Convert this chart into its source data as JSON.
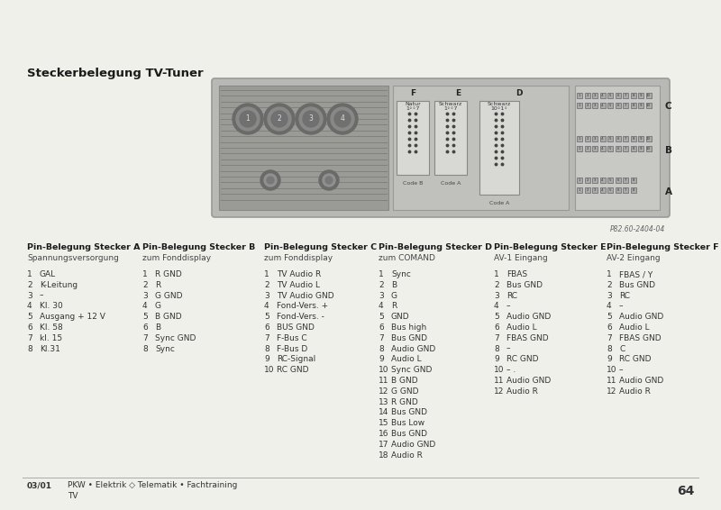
{
  "bg_color": "#f0f0eb",
  "title": "Steckerbelegung TV-Tuner",
  "page_number": "64",
  "footer_left": "03/01",
  "footer_middle": "PKW • Elektrik ◇ Telematik • Fachtraining",
  "footer_sub": "TV",
  "part_number": "P82.60-2404-04",
  "columns": [
    {
      "header": "Pin-Belegung Stecker A",
      "subheader": "Spannungsversorgung",
      "pins": [
        [
          "1",
          "GAL"
        ],
        [
          "2",
          "K-Leitung"
        ],
        [
          "3",
          "–"
        ],
        [
          "4",
          "Kl. 30"
        ],
        [
          "5",
          "Ausgang + 12 V"
        ],
        [
          "6",
          "Kl. 58"
        ],
        [
          "7",
          "kl. 15"
        ],
        [
          "8",
          "Kl.31"
        ]
      ]
    },
    {
      "header": "Pin-Belegung Stecker B",
      "subheader": "zum Fonddisplay",
      "pins": [
        [
          "1",
          "R GND"
        ],
        [
          "2",
          "R"
        ],
        [
          "3",
          "G GND"
        ],
        [
          "4",
          "G"
        ],
        [
          "5",
          "B GND"
        ],
        [
          "6",
          "B"
        ],
        [
          "7",
          "Sync GND"
        ],
        [
          "8",
          "Sync"
        ]
      ]
    },
    {
      "header": "Pin-Belegung Stecker C",
      "subheader": "zum Fonddisplay",
      "pins": [
        [
          "1",
          "TV Audio R"
        ],
        [
          "2",
          "TV Audio L"
        ],
        [
          "3",
          "TV Audio GND"
        ],
        [
          "4",
          "Fond-Vers. +"
        ],
        [
          "5",
          "Fond-Vers. -"
        ],
        [
          "6",
          "BUS GND"
        ],
        [
          "7",
          "F-Bus C"
        ],
        [
          "8",
          "F-Bus D"
        ],
        [
          "9",
          "RC-Signal"
        ],
        [
          "10",
          "RC GND"
        ]
      ]
    },
    {
      "header": "Pin-Belegung Stecker D",
      "subheader": "zum COMAND",
      "pins": [
        [
          "1",
          "Sync"
        ],
        [
          "2",
          "B"
        ],
        [
          "3",
          "G"
        ],
        [
          "4",
          "R"
        ],
        [
          "5",
          "GND"
        ],
        [
          "6",
          "Bus high"
        ],
        [
          "7",
          "Bus GND"
        ],
        [
          "8",
          "Audio GND"
        ],
        [
          "9",
          "Audio L"
        ],
        [
          "10",
          "Sync GND"
        ],
        [
          "11",
          "B GND"
        ],
        [
          "12",
          "G GND"
        ],
        [
          "13",
          "R GND"
        ],
        [
          "14",
          "Bus GND"
        ],
        [
          "15",
          "Bus Low"
        ],
        [
          "16",
          "Bus GND"
        ],
        [
          "17",
          "Audio GND"
        ],
        [
          "18",
          "Audio R"
        ]
      ]
    },
    {
      "header": "Pin-Belegung Stecker E",
      "subheader": "AV-1 Eingang",
      "pins": [
        [
          "1",
          "FBAS"
        ],
        [
          "2",
          "Bus GND"
        ],
        [
          "3",
          "RC"
        ],
        [
          "4",
          "–"
        ],
        [
          "5",
          "Audio GND"
        ],
        [
          "6",
          "Audio L"
        ],
        [
          "7",
          "FBAS GND"
        ],
        [
          "8",
          "–"
        ],
        [
          "9",
          "RC GND"
        ],
        [
          "10",
          "– ."
        ],
        [
          "11",
          "Audio GND"
        ],
        [
          "12",
          "Audio R"
        ]
      ]
    },
    {
      "header": "Pin-Belegung Stecker F",
      "subheader": "AV-2 Eingang",
      "pins": [
        [
          "1",
          "FBAS / Y"
        ],
        [
          "2",
          "Bus GND"
        ],
        [
          "3",
          "RC"
        ],
        [
          "4",
          "–"
        ],
        [
          "5",
          "Audio GND"
        ],
        [
          "6",
          "Audio L"
        ],
        [
          "7",
          "FBAS GND"
        ],
        [
          "8",
          "C"
        ],
        [
          "9",
          "RC GND"
        ],
        [
          "10",
          "–"
        ],
        [
          "11",
          "Audio GND"
        ],
        [
          "12",
          "Audio R"
        ]
      ]
    }
  ]
}
